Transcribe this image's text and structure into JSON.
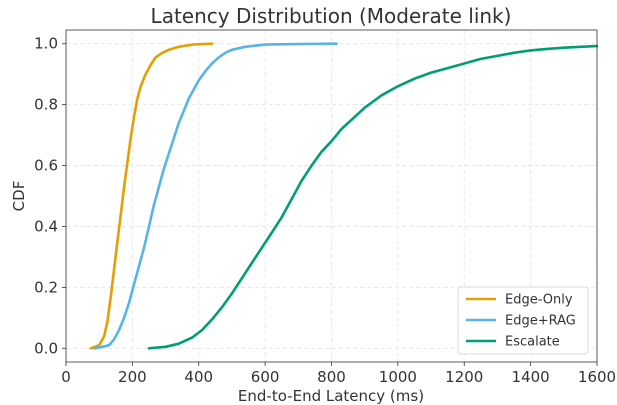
{
  "chart_data": {
    "type": "line",
    "title": "Latency Distribution (Moderate link)",
    "xlabel": "End-to-End Latency (ms)",
    "ylabel": "CDF",
    "xlim": [
      0,
      1600
    ],
    "ylim": [
      -0.045,
      1.045
    ],
    "xticks": [
      0,
      200,
      400,
      600,
      800,
      1000,
      1200,
      1400,
      1600
    ],
    "yticks": [
      0.0,
      0.2,
      0.4,
      0.6,
      0.8,
      1.0
    ],
    "xtick_labels": [
      "0",
      "200",
      "400",
      "600",
      "800",
      "1000",
      "1200",
      "1400",
      "1600"
    ],
    "ytick_labels": [
      "0.0",
      "0.2",
      "0.4",
      "0.6",
      "0.8",
      "1.0"
    ],
    "grid": true,
    "legend_position": "lower-right",
    "series": [
      {
        "name": "Edge-Only",
        "color": "#E69F00",
        "points": [
          [
            75,
            0.0
          ],
          [
            100,
            0.01
          ],
          [
            115,
            0.04
          ],
          [
            125,
            0.09
          ],
          [
            135,
            0.17
          ],
          [
            145,
            0.26
          ],
          [
            155,
            0.35
          ],
          [
            165,
            0.44
          ],
          [
            175,
            0.53
          ],
          [
            185,
            0.61
          ],
          [
            195,
            0.69
          ],
          [
            205,
            0.76
          ],
          [
            215,
            0.82
          ],
          [
            225,
            0.86
          ],
          [
            240,
            0.9
          ],
          [
            255,
            0.93
          ],
          [
            270,
            0.955
          ],
          [
            290,
            0.97
          ],
          [
            310,
            0.98
          ],
          [
            340,
            0.99
          ],
          [
            380,
            0.997
          ],
          [
            440,
            1.0
          ]
        ]
      },
      {
        "name": "Edge+RAG",
        "color": "#56B4E9",
        "points": [
          [
            85,
            0.0
          ],
          [
            110,
            0.005
          ],
          [
            130,
            0.01
          ],
          [
            145,
            0.03
          ],
          [
            160,
            0.06
          ],
          [
            175,
            0.1
          ],
          [
            190,
            0.15
          ],
          [
            205,
            0.21
          ],
          [
            220,
            0.27
          ],
          [
            235,
            0.33
          ],
          [
            250,
            0.4
          ],
          [
            265,
            0.47
          ],
          [
            280,
            0.53
          ],
          [
            295,
            0.59
          ],
          [
            310,
            0.64
          ],
          [
            325,
            0.69
          ],
          [
            340,
            0.74
          ],
          [
            355,
            0.78
          ],
          [
            370,
            0.82
          ],
          [
            385,
            0.85
          ],
          [
            400,
            0.88
          ],
          [
            420,
            0.91
          ],
          [
            440,
            0.935
          ],
          [
            460,
            0.955
          ],
          [
            480,
            0.97
          ],
          [
            500,
            0.98
          ],
          [
            540,
            0.99
          ],
          [
            600,
            0.997
          ],
          [
            700,
            0.999
          ],
          [
            815,
            1.0
          ]
        ]
      },
      {
        "name": "Escalate",
        "color": "#009E73",
        "points": [
          [
            250,
            0.0
          ],
          [
            300,
            0.005
          ],
          [
            340,
            0.015
          ],
          [
            380,
            0.035
          ],
          [
            410,
            0.06
          ],
          [
            440,
            0.095
          ],
          [
            470,
            0.135
          ],
          [
            500,
            0.18
          ],
          [
            530,
            0.23
          ],
          [
            560,
            0.28
          ],
          [
            590,
            0.33
          ],
          [
            620,
            0.38
          ],
          [
            650,
            0.43
          ],
          [
            680,
            0.49
          ],
          [
            710,
            0.55
          ],
          [
            740,
            0.6
          ],
          [
            770,
            0.645
          ],
          [
            800,
            0.68
          ],
          [
            830,
            0.72
          ],
          [
            860,
            0.75
          ],
          [
            900,
            0.79
          ],
          [
            950,
            0.83
          ],
          [
            1000,
            0.86
          ],
          [
            1050,
            0.885
          ],
          [
            1100,
            0.905
          ],
          [
            1150,
            0.92
          ],
          [
            1200,
            0.935
          ],
          [
            1250,
            0.95
          ],
          [
            1300,
            0.96
          ],
          [
            1350,
            0.97
          ],
          [
            1400,
            0.978
          ],
          [
            1450,
            0.983
          ],
          [
            1500,
            0.987
          ],
          [
            1550,
            0.99
          ],
          [
            1600,
            0.992
          ]
        ]
      }
    ]
  }
}
